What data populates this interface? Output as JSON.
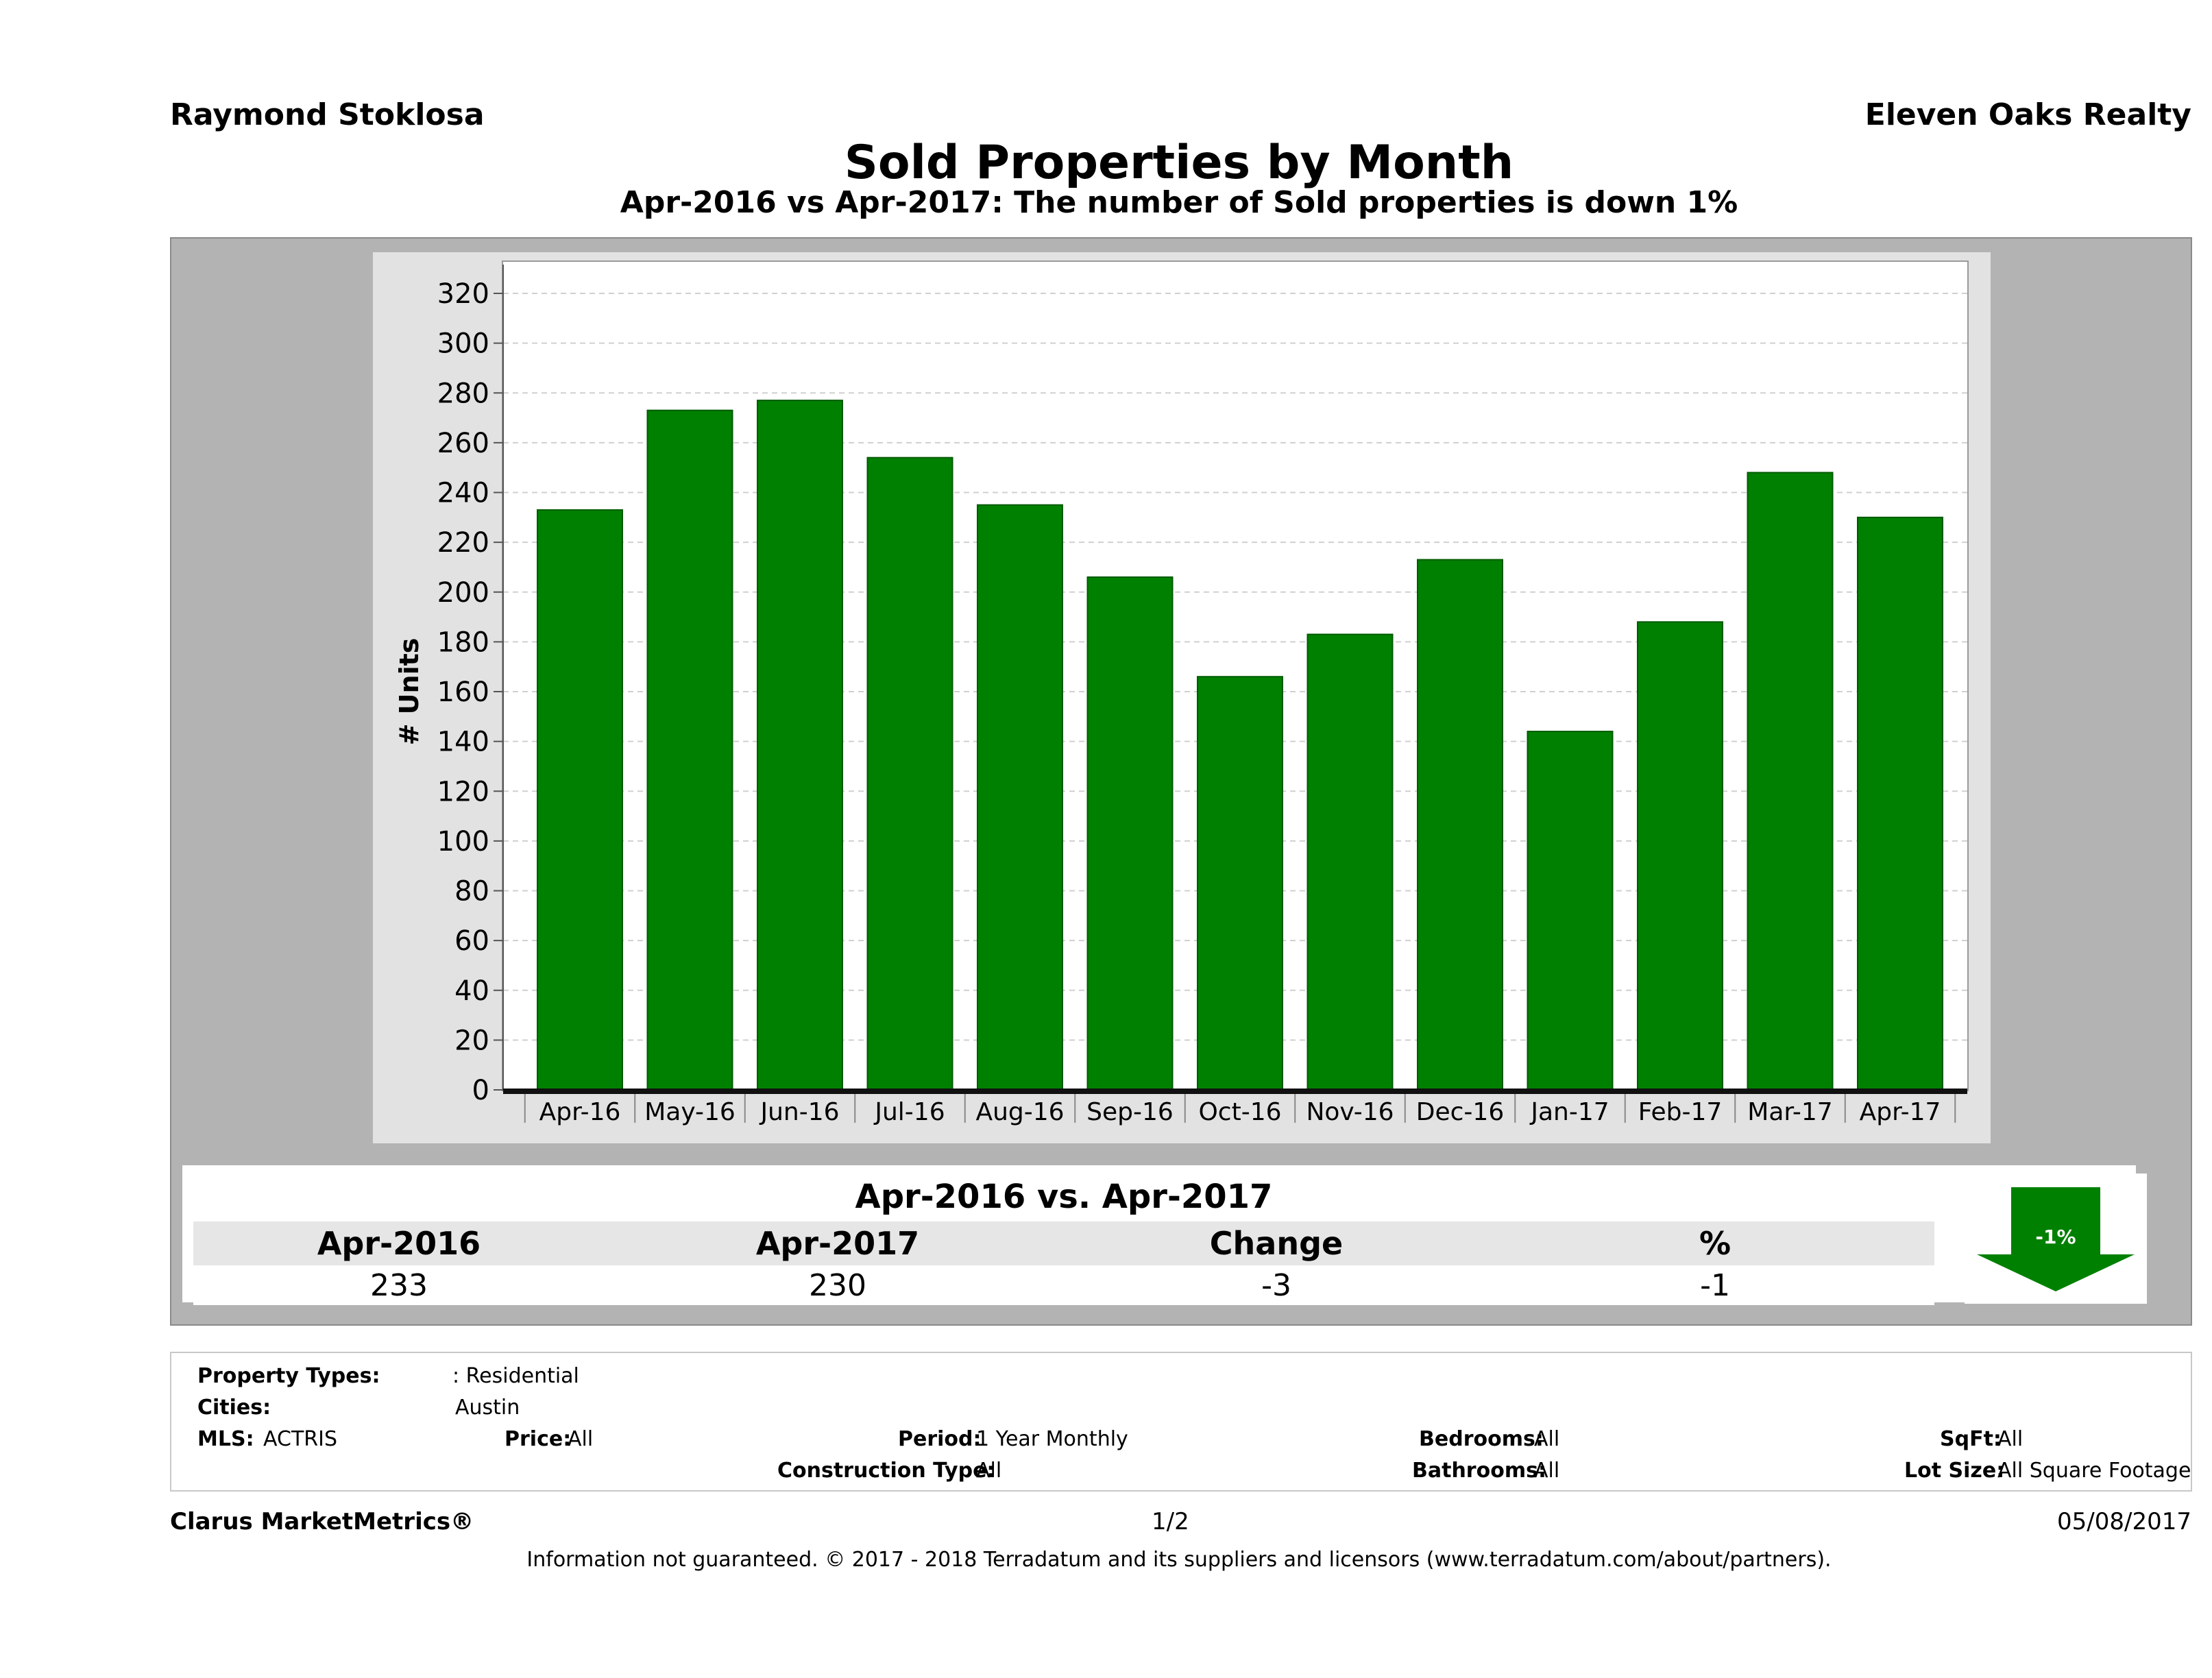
{
  "header": {
    "agent_name": "Raymond Stoklosa",
    "company": "Eleven Oaks Realty",
    "title": "Sold Properties by Month",
    "subtitle": "Apr-2016 vs Apr-2017: The number of Sold  properties is down 1%"
  },
  "chart_data": {
    "type": "bar",
    "categories": [
      "Apr-16",
      "May-16",
      "Jun-16",
      "Jul-16",
      "Aug-16",
      "Sep-16",
      "Oct-16",
      "Nov-16",
      "Dec-16",
      "Jan-17",
      "Feb-17",
      "Mar-17",
      "Apr-17"
    ],
    "values": [
      233,
      273,
      277,
      254,
      235,
      206,
      166,
      183,
      213,
      144,
      188,
      248,
      230
    ],
    "ylabel": "# Units",
    "ylim": [
      0,
      320
    ],
    "yticks": [
      0,
      20,
      40,
      60,
      80,
      100,
      120,
      140,
      160,
      180,
      200,
      220,
      240,
      260,
      280,
      300,
      320
    ],
    "bar_color": "#008000",
    "grid": true
  },
  "summary": {
    "title": "Apr-2016 vs. Apr-2017",
    "headers": [
      "Apr-2016",
      "Apr-2017",
      "Change",
      "%"
    ],
    "values": [
      "233",
      "230",
      "-3",
      "-1"
    ],
    "arrow_label": "-1%",
    "arrow_color": "#008000",
    "arrow_icon": "arrow-down-icon"
  },
  "filters": {
    "property_types_label": "Property Types:",
    "property_types_value": ": Residential",
    "cities_label": "Cities:",
    "cities_value": "Austin",
    "mls_label": "MLS:",
    "mls_value": "ACTRIS",
    "price_label": "Price:",
    "price_value": "All",
    "period_label": "Period:",
    "period_value": "1 Year Monthly",
    "construction_label": "Construction Type:",
    "construction_value": "All",
    "bedrooms_label": "Bedrooms:",
    "bedrooms_value": "All",
    "bathrooms_label": "Bathrooms:",
    "bathrooms_value": "All",
    "sqft_label": "SqFt:",
    "sqft_value": "All",
    "lot_size_label": "Lot Size:",
    "lot_size_value": "All Square Footage"
  },
  "footer": {
    "brand": "Clarus MarketMetrics®",
    "page": "1/2",
    "date": "05/08/2017",
    "disclaimer": "Information not guaranteed. © 2017 - 2018 Terradatum and its suppliers and licensors (www.terradatum.com/about/partners)."
  }
}
